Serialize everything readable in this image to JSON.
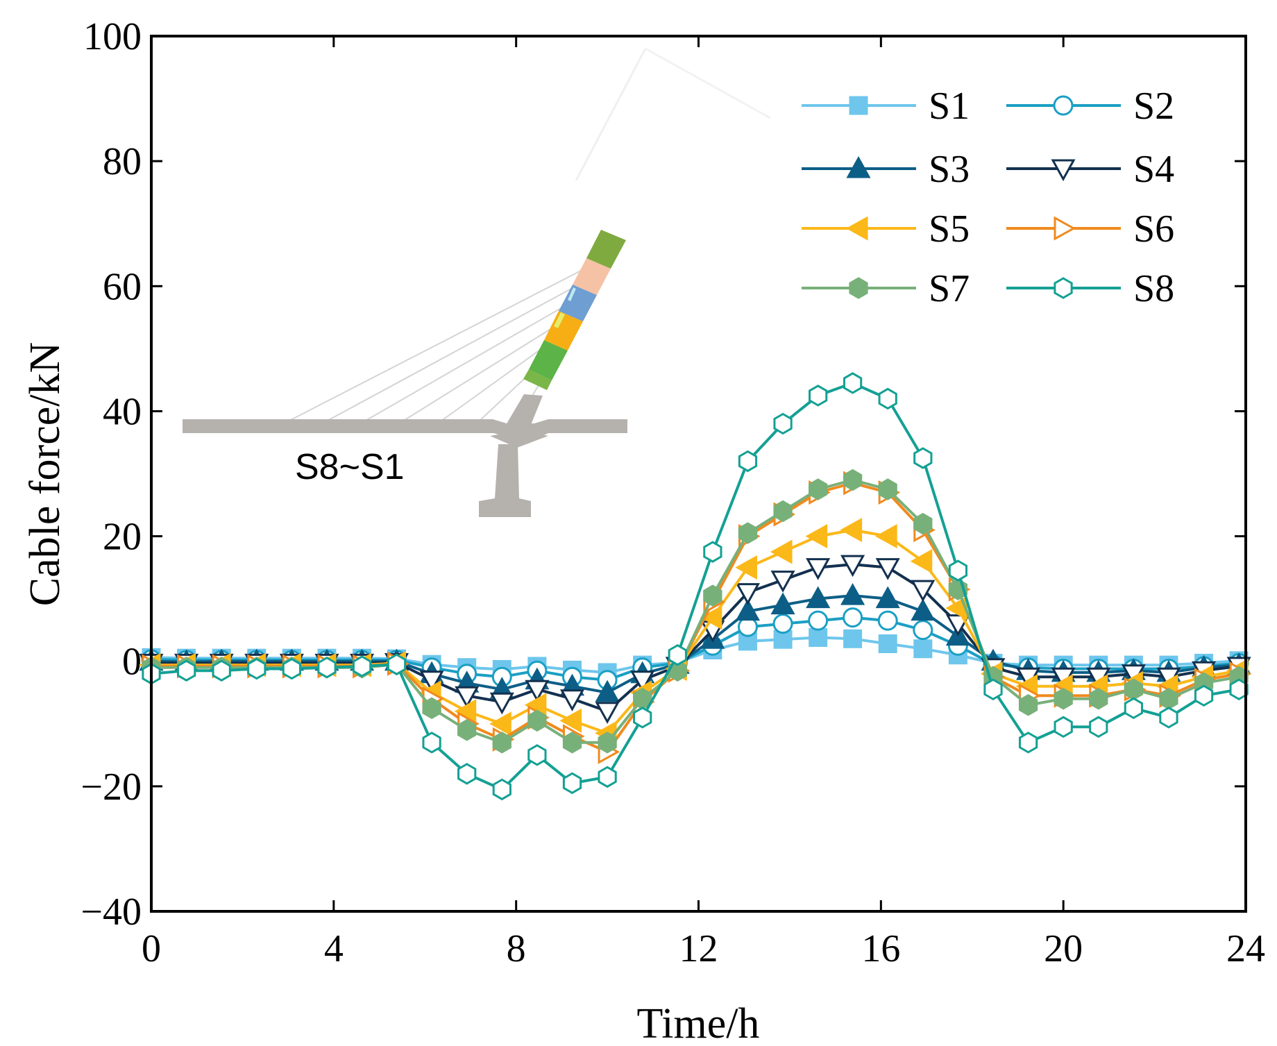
{
  "chart_data": {
    "type": "line",
    "xlabel": "Time/h",
    "ylabel": "Cable force/kN",
    "xlim": [
      0,
      24
    ],
    "ylim": [
      -40,
      100
    ],
    "xticks": [
      0,
      4,
      8,
      12,
      16,
      20,
      24
    ],
    "yticks": [
      -40,
      -20,
      0,
      20,
      40,
      60,
      80,
      100
    ],
    "xtick_labels": [
      "0",
      "4",
      "8",
      "12",
      "16",
      "20",
      "24"
    ],
    "ytick_labels": [
      "−40",
      "−20",
      "0",
      "20",
      "40",
      "60",
      "80",
      "100"
    ],
    "legend_position": "top-right",
    "inset_label": "S8~S1",
    "x": [
      0,
      0.77,
      1.54,
      2.31,
      3.08,
      3.85,
      4.62,
      5.38,
      6.15,
      6.92,
      7.69,
      8.46,
      9.23,
      10.0,
      10.77,
      11.54,
      12.31,
      13.08,
      13.85,
      14.62,
      15.38,
      16.15,
      16.92,
      17.69,
      18.46,
      19.23,
      20.0,
      20.77,
      21.54,
      22.31,
      23.08,
      23.85
    ],
    "series": [
      {
        "name": "S1",
        "color": "#6ec6ec",
        "marker": "square",
        "filled": true,
        "values": [
          0.6,
          0.5,
          0.5,
          0.5,
          0.5,
          0.5,
          0.5,
          0.4,
          -0.5,
          -1.0,
          -1.3,
          -0.8,
          -1.4,
          -1.8,
          -0.6,
          -0.2,
          1.8,
          3.2,
          3.5,
          3.8,
          3.6,
          2.8,
          2.0,
          1.0,
          -0.3,
          -0.6,
          -0.6,
          -0.6,
          -0.6,
          -0.6,
          -0.3,
          0.1
        ]
      },
      {
        "name": "S2",
        "color": "#1b9fc4",
        "marker": "circle",
        "filled": false,
        "values": [
          0.3,
          0.2,
          0.2,
          0.2,
          0.2,
          0.2,
          0.2,
          0.2,
          -1.0,
          -2.0,
          -2.5,
          -1.5,
          -2.5,
          -3.0,
          -1.0,
          -0.3,
          2.5,
          5.5,
          6.0,
          6.5,
          7.0,
          6.5,
          5.0,
          2.5,
          -0.5,
          -1.0,
          -1.2,
          -1.2,
          -1.2,
          -1.2,
          -0.8,
          -0.3
        ]
      },
      {
        "name": "S3",
        "color": "#0c5e86",
        "marker": "triangle-up",
        "filled": true,
        "values": [
          0.0,
          -0.1,
          0.0,
          0.0,
          0.0,
          0.0,
          0.0,
          0.0,
          -2.0,
          -3.5,
          -4.5,
          -3.0,
          -4.0,
          -5.0,
          -2.0,
          -0.5,
          3.5,
          8.0,
          9.0,
          10.0,
          10.5,
          10.0,
          8.0,
          4.0,
          0.0,
          -1.5,
          -1.8,
          -1.8,
          -1.5,
          -1.8,
          -1.0,
          -0.6
        ]
      },
      {
        "name": "S4",
        "color": "#13304f",
        "marker": "triangle-down",
        "filled": false,
        "values": [
          -0.3,
          -0.3,
          -0.3,
          -0.3,
          -0.3,
          -0.3,
          -0.3,
          -0.2,
          -3.0,
          -5.5,
          -6.5,
          -4.5,
          -6.0,
          -8.0,
          -3.0,
          -0.8,
          5.0,
          11.0,
          13.0,
          15.0,
          15.5,
          15.0,
          11.5,
          6.0,
          -1.0,
          -2.5,
          -2.5,
          -2.5,
          -2.0,
          -2.5,
          -1.5,
          -0.8
        ]
      },
      {
        "name": "S5",
        "color": "#fbb819",
        "marker": "triangle-left",
        "filled": true,
        "values": [
          -0.6,
          -0.6,
          -0.6,
          -0.6,
          -0.6,
          -0.6,
          -0.6,
          -0.3,
          -5.0,
          -8.0,
          -10.0,
          -7.0,
          -9.5,
          -11.5,
          -5.0,
          -1.2,
          7.0,
          15.0,
          17.5,
          20.0,
          21.0,
          20.0,
          16.0,
          8.5,
          -2.0,
          -4.0,
          -4.0,
          -4.0,
          -3.5,
          -4.0,
          -2.5,
          -1.5
        ]
      },
      {
        "name": "S6",
        "color": "#f08a1e",
        "marker": "triangle-right",
        "filled": false,
        "values": [
          -0.8,
          -0.8,
          -0.8,
          -0.8,
          -0.8,
          -0.8,
          -0.8,
          -0.4,
          -6.0,
          -10.0,
          -12.5,
          -9.0,
          -12.0,
          -14.5,
          -6.5,
          -1.5,
          9.5,
          20.0,
          23.5,
          27.0,
          28.5,
          27.0,
          21.0,
          11.5,
          -2.5,
          -5.5,
          -5.5,
          -5.5,
          -4.5,
          -5.5,
          -3.0,
          -2.0
        ]
      },
      {
        "name": "S7",
        "color": "#78b07a",
        "marker": "hexagon",
        "filled": true,
        "values": [
          -1.0,
          -1.0,
          -1.0,
          -1.0,
          -1.0,
          -1.0,
          -1.0,
          -0.5,
          -7.5,
          -11.0,
          -13.0,
          -9.5,
          -13.0,
          -13.0,
          -6.0,
          -1.5,
          10.5,
          20.5,
          24.0,
          27.5,
          29.0,
          27.5,
          22.0,
          11.5,
          -2.5,
          -7.0,
          -6.0,
          -6.0,
          -4.5,
          -6.0,
          -3.5,
          -2.5
        ]
      },
      {
        "name": "S8",
        "color": "#14a094",
        "marker": "hexagon",
        "filled": false,
        "values": [
          -2.0,
          -1.5,
          -1.5,
          -1.2,
          -1.2,
          -1.0,
          -0.8,
          -0.5,
          -13.0,
          -18.0,
          -20.5,
          -15.0,
          -19.5,
          -18.5,
          -9.0,
          1.0,
          17.5,
          32.0,
          38.0,
          42.5,
          44.5,
          42.0,
          32.5,
          14.5,
          -4.5,
          -13.0,
          -10.5,
          -10.5,
          -7.5,
          -9.0,
          -5.5,
          -4.5
        ]
      }
    ]
  }
}
